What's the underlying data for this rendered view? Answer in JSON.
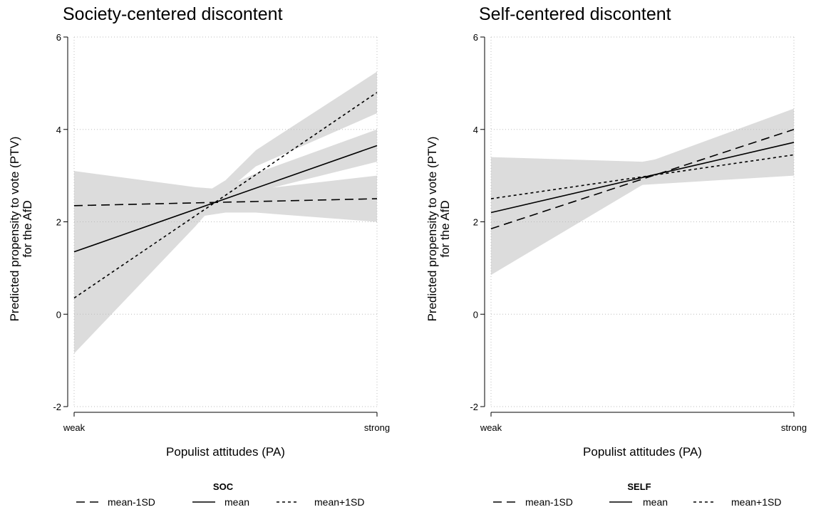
{
  "chart_data": [
    {
      "type": "line",
      "title": "Society-centered discontent",
      "xlabel": "Populist attitudes (PA)",
      "ylabel": [
        "Predicted propensity to vote (PTV)",
        "for the AfD"
      ],
      "x": [
        0,
        1
      ],
      "x_tick_labels": [
        "weak",
        "strong"
      ],
      "ylim": [
        -2,
        6
      ],
      "y_ticks": [
        -2,
        0,
        2,
        4,
        6
      ],
      "grid": true,
      "legend": {
        "title": "SOC",
        "placement": "bottom"
      },
      "series": [
        {
          "name": "mean-1SD",
          "dash": "dashed",
          "values": [
            2.35,
            2.5
          ],
          "ci": {
            "x": [
              0,
              0.4,
              0.5,
              0.6,
              1
            ],
            "lower": [
              1.6,
              2.1,
              2.2,
              2.2,
              2.0
            ],
            "upper": [
              3.1,
              2.75,
              2.7,
              2.7,
              3.0
            ]
          }
        },
        {
          "name": "mean",
          "dash": "solid",
          "values": [
            1.35,
            3.65
          ],
          "ci": {
            "x": [
              0,
              0.4,
              0.5,
              0.6,
              1
            ],
            "lower": [
              0.75,
              2.2,
              2.35,
              2.65,
              3.3
            ],
            "upper": [
              1.9,
              2.6,
              2.75,
              3.05,
              4.0
            ]
          }
        },
        {
          "name": "mean+1SD",
          "dash": "dotted",
          "values": [
            0.35,
            4.8
          ],
          "ci": {
            "x": [
              0,
              0.4,
              0.5,
              0.6,
              1
            ],
            "lower": [
              -0.85,
              1.9,
              2.65,
              3.2,
              4.35
            ],
            "upper": [
              1.3,
              2.5,
              2.9,
              3.55,
              5.25
            ]
          }
        }
      ]
    },
    {
      "type": "line",
      "title": "Self-centered discontent",
      "xlabel": "Populist attitudes (PA)",
      "ylabel": [
        "Predicted propensity to vote (PTV)",
        "for the AfD"
      ],
      "x": [
        0,
        1
      ],
      "x_tick_labels": [
        "weak",
        "strong"
      ],
      "ylim": [
        -2,
        6
      ],
      "y_ticks": [
        -2,
        0,
        2,
        4,
        6
      ],
      "grid": true,
      "legend": {
        "title": "SELF",
        "placement": "bottom"
      },
      "series": [
        {
          "name": "mean-1SD",
          "dash": "dashed",
          "values": [
            1.85,
            4.0
          ],
          "ci": {
            "x": [
              0,
              0.5,
              1
            ],
            "lower": [
              0.85,
              2.8,
              3.55
            ],
            "upper": [
              2.8,
              3.25,
              4.45
            ]
          }
        },
        {
          "name": "mean",
          "dash": "solid",
          "values": [
            2.2,
            3.72
          ],
          "ci": {
            "x": [
              0,
              0.5,
              1
            ],
            "lower": [
              1.6,
              2.85,
              3.45
            ],
            "upper": [
              2.8,
              3.2,
              4.0
            ]
          }
        },
        {
          "name": "mean+1SD",
          "dash": "dotted",
          "values": [
            2.5,
            3.45
          ],
          "ci": {
            "x": [
              0,
              0.5,
              1
            ],
            "lower": [
              1.6,
              2.8,
              3.0
            ],
            "upper": [
              3.4,
              3.3,
              3.9
            ]
          }
        }
      ]
    }
  ]
}
